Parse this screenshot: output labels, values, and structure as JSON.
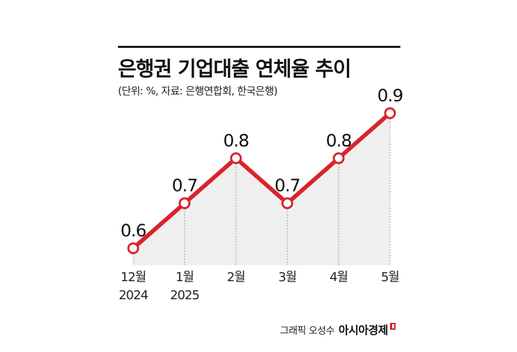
{
  "header": {
    "title": "은행권 기업대출 연체율 추이",
    "subtitle": "(단위: %, 자료: 은행연합회, 한국은행)"
  },
  "chart_data": {
    "type": "line",
    "categories": [
      "12월\n2024",
      "1월\n2025",
      "2월",
      "3월",
      "4월",
      "5월"
    ],
    "values": [
      0.6,
      0.7,
      0.8,
      0.7,
      0.8,
      0.9
    ],
    "value_labels": [
      "0.6",
      "0.7",
      "0.8",
      "0.7",
      "0.8",
      "0.9"
    ],
    "ylim": [
      0.55,
      0.92
    ],
    "grid": false,
    "colors": {
      "line": "#d8242b",
      "area": "#efefef",
      "guides": "#9a9a9a"
    }
  },
  "credit": {
    "author": "그래픽 오성수",
    "brand": "아시아경제",
    "brand_mark": "brand-logo-icon"
  }
}
